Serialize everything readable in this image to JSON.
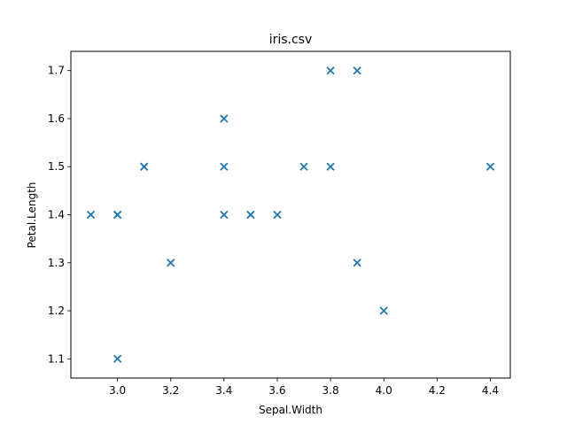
{
  "chart_data": {
    "type": "scatter",
    "title": "iris.csv",
    "xlabel": "Sepal.Width",
    "ylabel": "Petal.Length",
    "xlim": [
      2.825,
      4.475
    ],
    "ylim": [
      1.06,
      1.74
    ],
    "xticks": [
      3.0,
      3.2,
      3.4,
      3.6,
      3.8,
      4.0,
      4.2,
      4.4
    ],
    "yticks": [
      1.1,
      1.2,
      1.3,
      1.4,
      1.5,
      1.6,
      1.7
    ],
    "xtick_labels": [
      "3.0",
      "3.2",
      "3.4",
      "3.6",
      "3.8",
      "4.0",
      "4.2",
      "4.4"
    ],
    "ytick_labels": [
      "1.1",
      "1.2",
      "1.3",
      "1.4",
      "1.5",
      "1.6",
      "1.7"
    ],
    "marker": "x",
    "color": "#1f77b4",
    "grid": false,
    "series": [
      {
        "points": [
          [
            3.5,
            1.4
          ],
          [
            3.0,
            1.4
          ],
          [
            3.2,
            1.3
          ],
          [
            3.1,
            1.5
          ],
          [
            3.6,
            1.4
          ],
          [
            3.9,
            1.7
          ],
          [
            3.4,
            1.4
          ],
          [
            3.4,
            1.5
          ],
          [
            2.9,
            1.4
          ],
          [
            3.1,
            1.5
          ],
          [
            3.7,
            1.5
          ],
          [
            3.4,
            1.6
          ],
          [
            3.0,
            1.4
          ],
          [
            3.0,
            1.1
          ],
          [
            4.0,
            1.2
          ],
          [
            4.4,
            1.5
          ],
          [
            3.9,
            1.3
          ],
          [
            3.5,
            1.4
          ],
          [
            3.8,
            1.7
          ],
          [
            3.8,
            1.5
          ]
        ]
      }
    ]
  }
}
